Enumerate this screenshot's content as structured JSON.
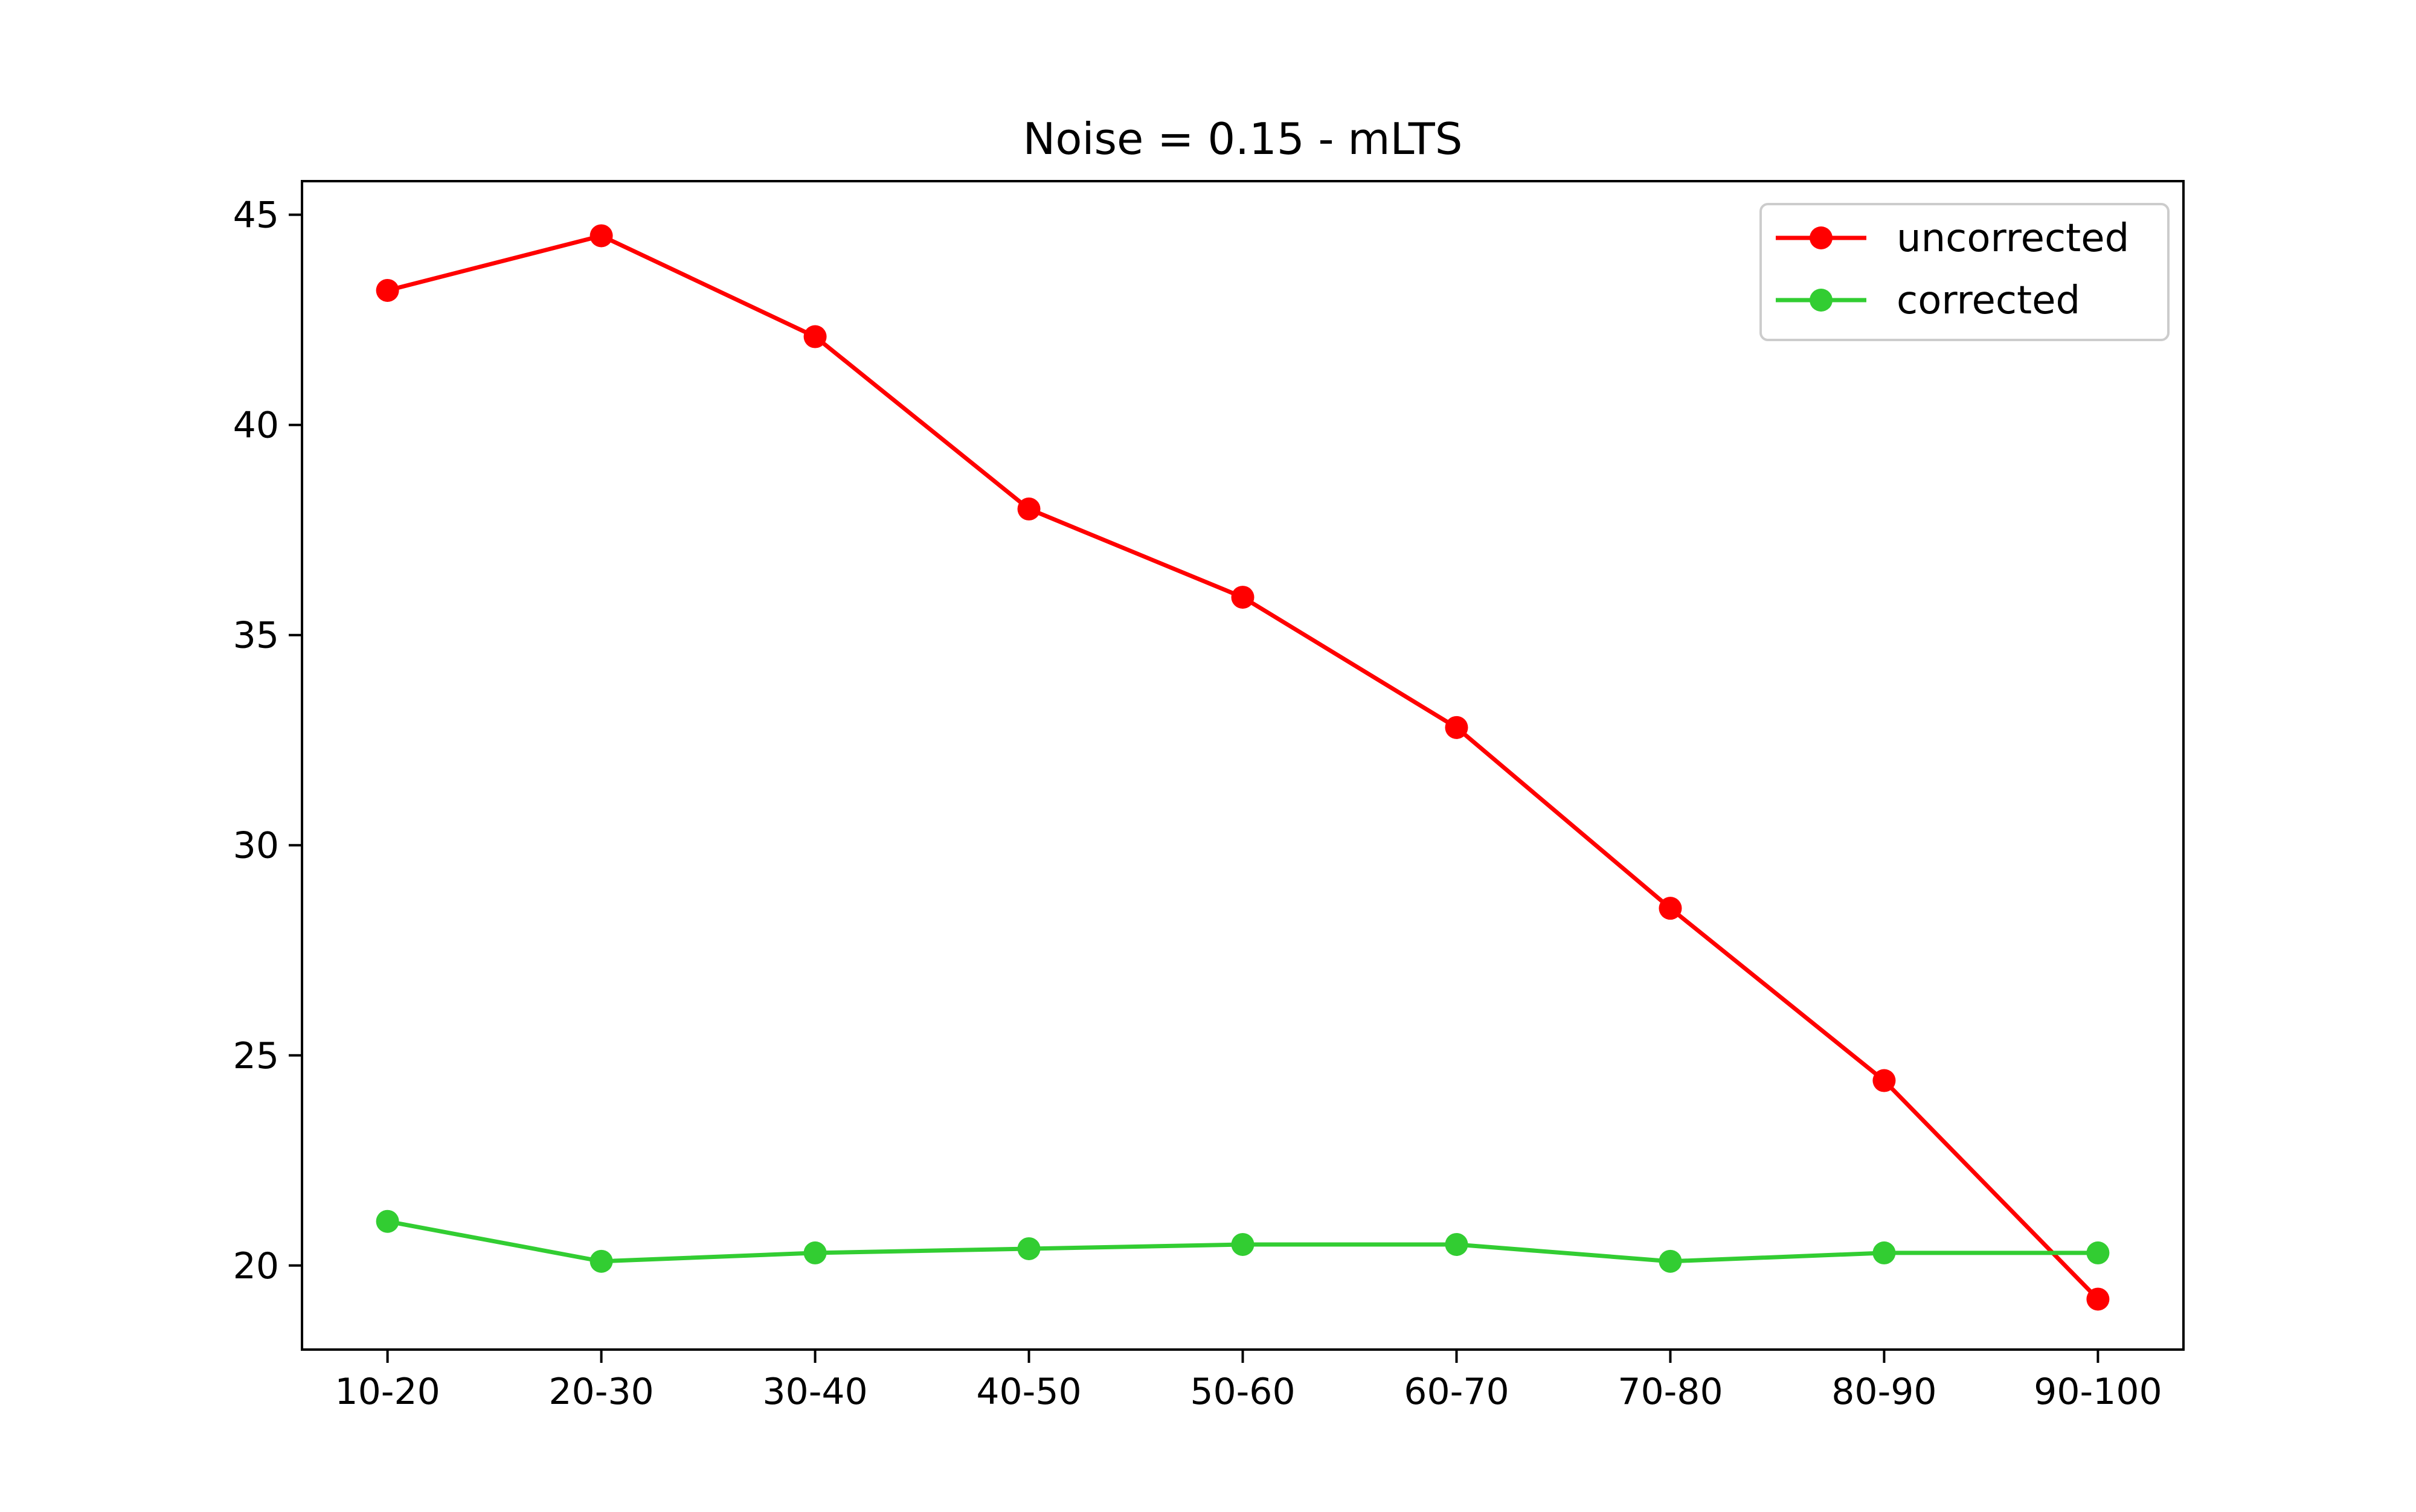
{
  "chart_data": {
    "type": "line",
    "title": "Noise = 0.15 - mLTS",
    "xlabel": "",
    "ylabel": "",
    "categories": [
      "10-20",
      "20-30",
      "30-40",
      "40-50",
      "50-60",
      "60-70",
      "70-80",
      "80-90",
      "90-100"
    ],
    "ylim": [
      18.0,
      45.8
    ],
    "yticks": [
      20,
      25,
      30,
      35,
      40,
      45
    ],
    "grid": false,
    "legend_position": "top-right",
    "series": [
      {
        "name": "uncorrected",
        "color": "#ff0000",
        "values": [
          43.2,
          44.5,
          42.1,
          38.0,
          35.9,
          32.8,
          28.5,
          24.4,
          19.2
        ]
      },
      {
        "name": "corrected",
        "color": "#32cd32",
        "values": [
          21.05,
          20.1,
          20.3,
          20.4,
          20.5,
          20.5,
          20.1,
          20.3,
          20.3
        ]
      }
    ]
  }
}
